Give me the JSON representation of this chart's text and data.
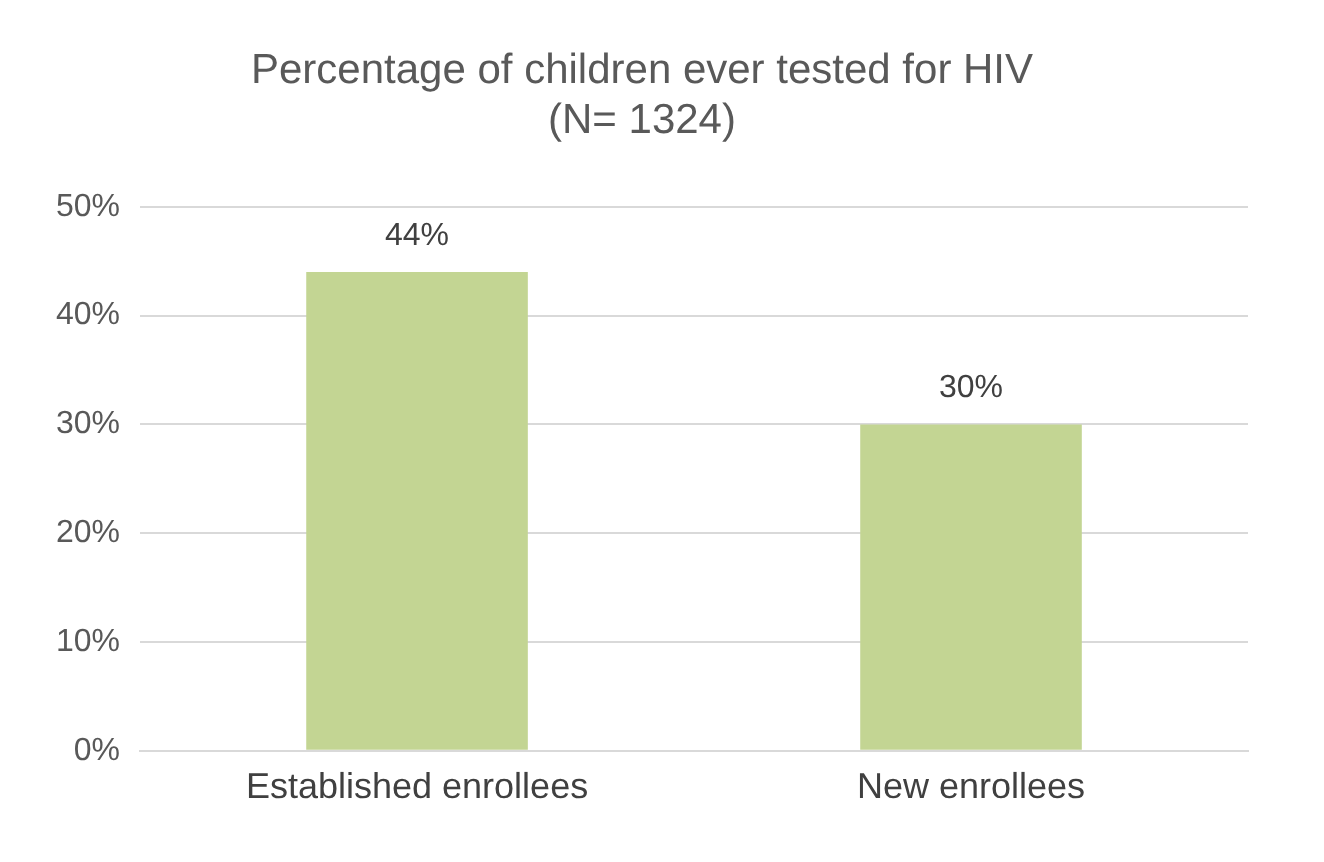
{
  "chart_data": {
    "type": "bar",
    "title": "Percentage of children ever tested for HIV\n(N= 1324)",
    "categories": [
      "Established enrollees",
      "New enrollees"
    ],
    "values": [
      44,
      30
    ],
    "color": "#c3d593",
    "value_labels": [
      "44%",
      "30%"
    ],
    "ylim": [
      0,
      50
    ],
    "yticks": [
      {
        "value": 0,
        "label": "0%"
      },
      {
        "value": 10,
        "label": "10%"
      },
      {
        "value": 20,
        "label": "20%"
      },
      {
        "value": 30,
        "label": "30%"
      },
      {
        "value": 40,
        "label": "40%"
      },
      {
        "value": 50,
        "label": "50%"
      }
    ],
    "grid": "y"
  }
}
